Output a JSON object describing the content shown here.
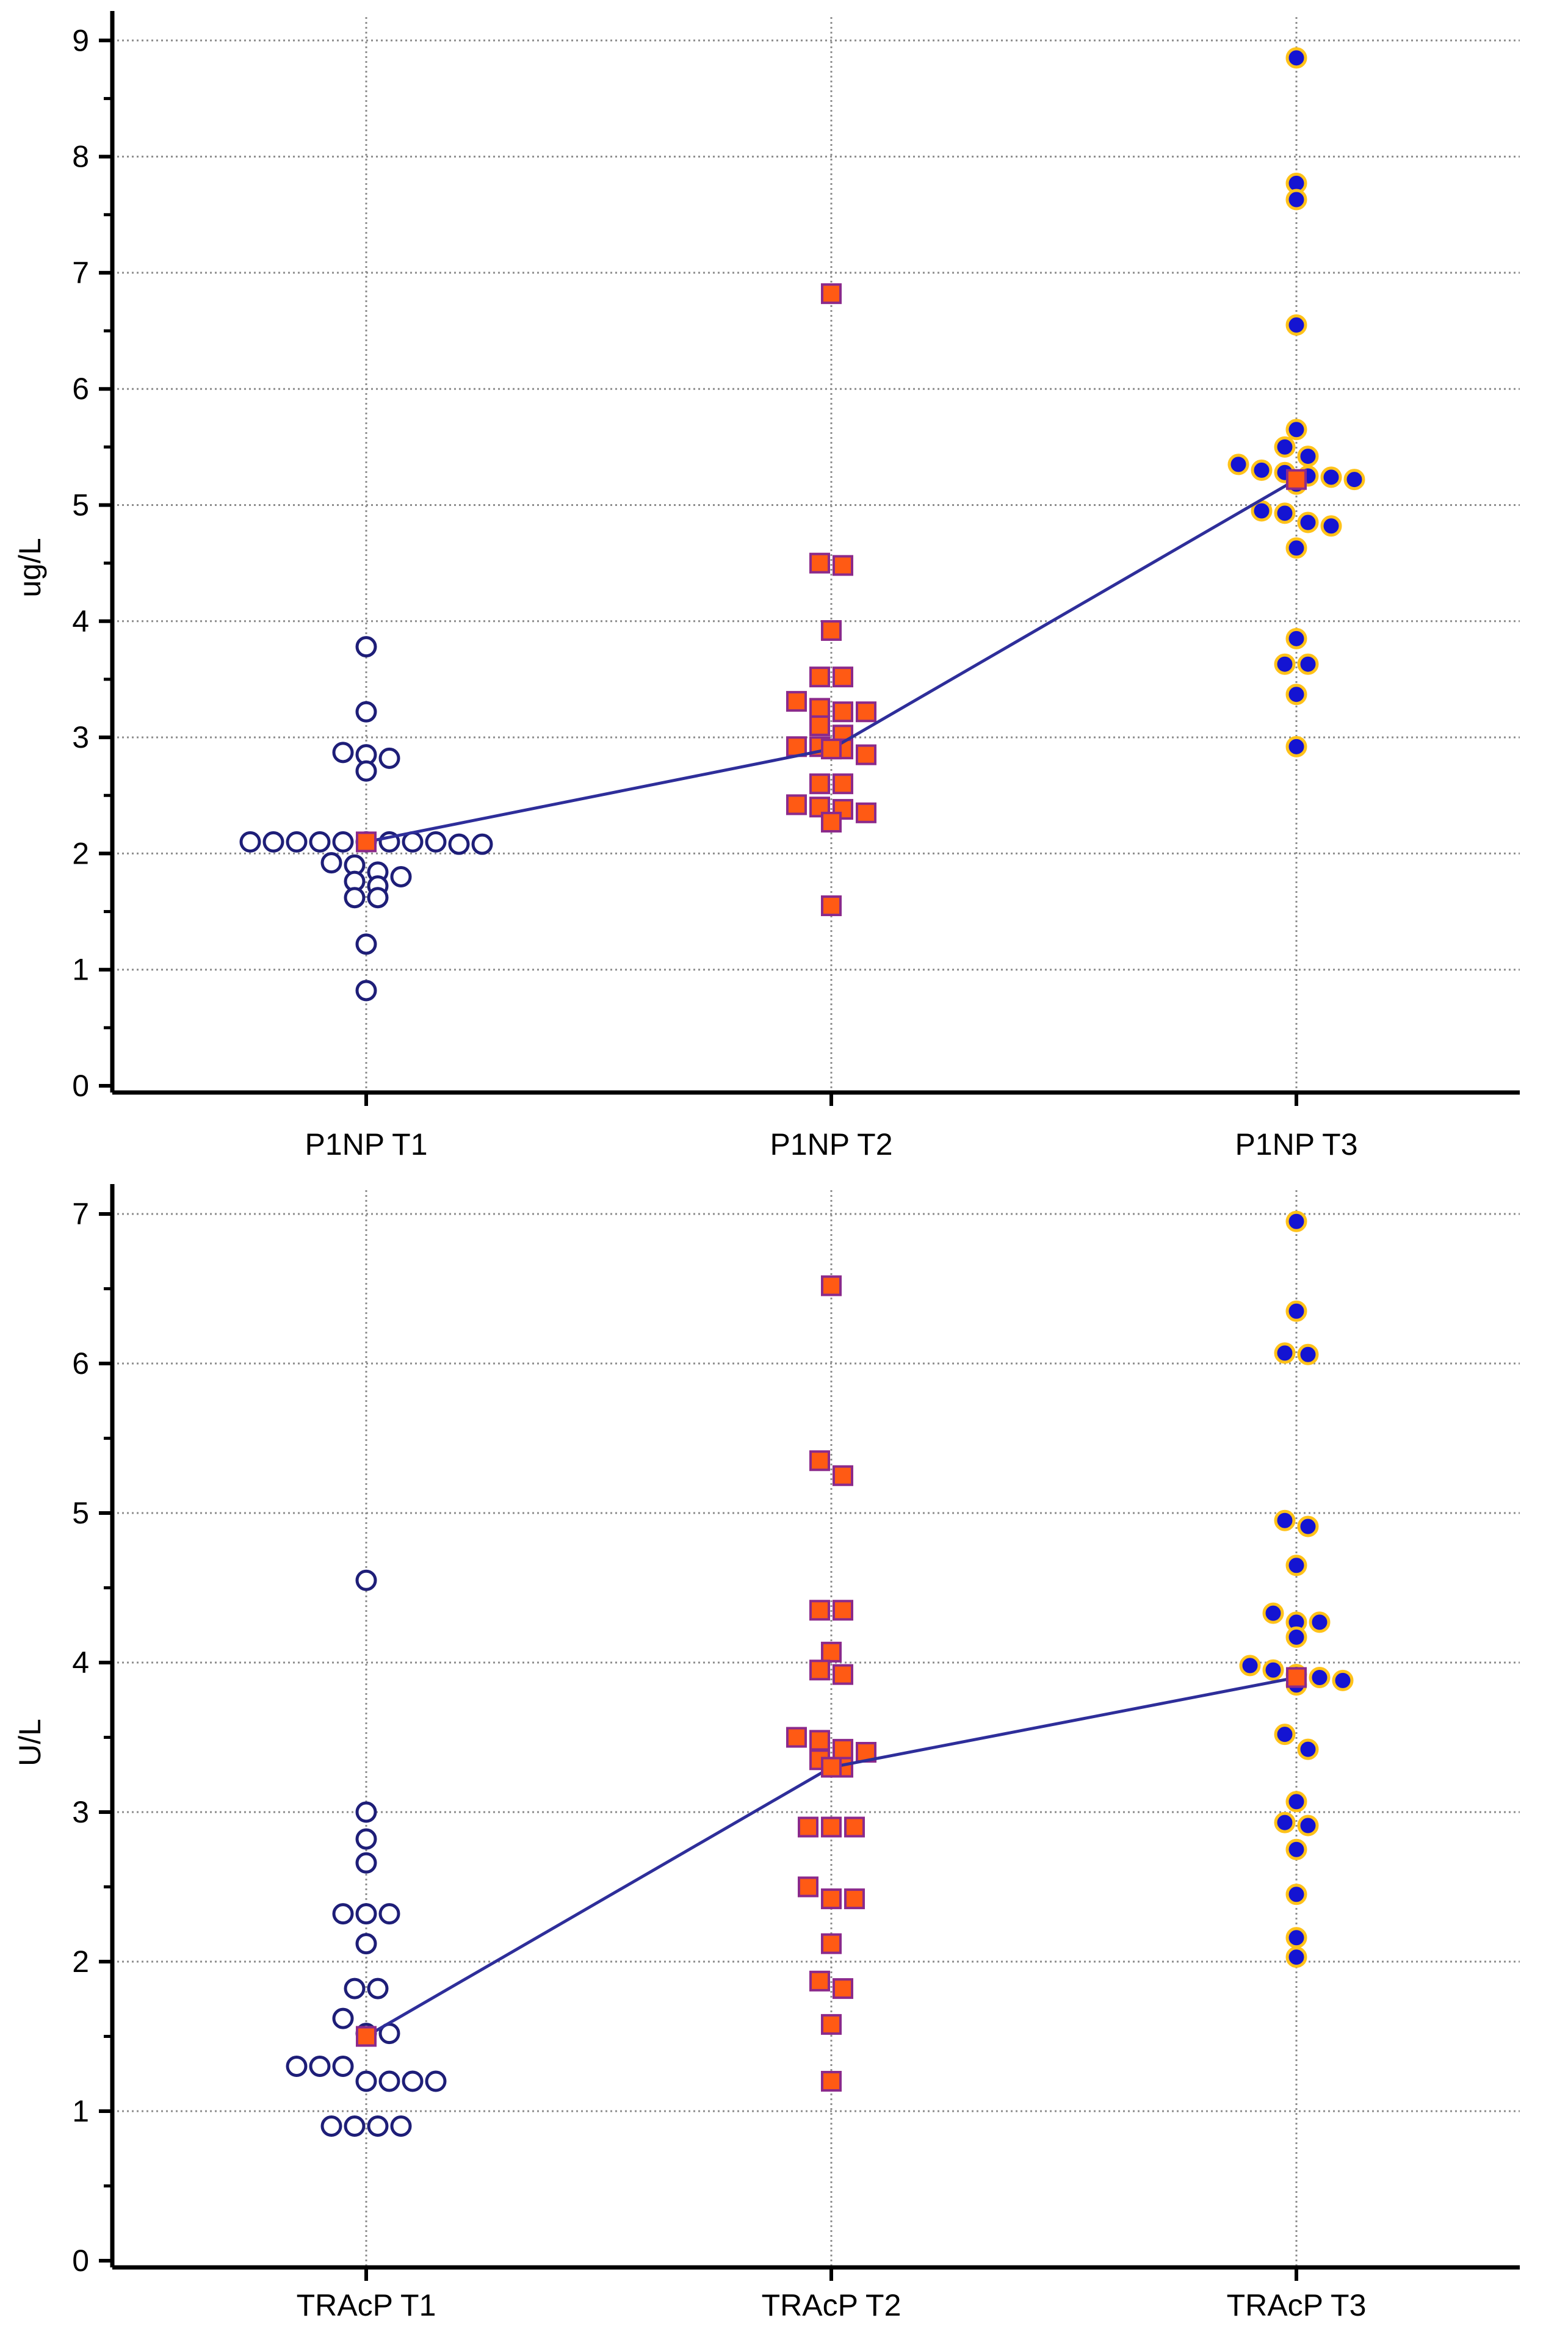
{
  "colors": {
    "axis": "#000000",
    "grid": "#8c8c8c",
    "line": "#2e2e9a",
    "open_circle": "#1e1e78",
    "square_fill": "#ff5a14",
    "square_edge": "#8b2a8b",
    "filled_circle": "#1414d2",
    "filled_circle_edge": "#ffc21a"
  },
  "chart_data": [
    {
      "type": "scatter",
      "name": "P1NP",
      "ylabel": "ug/L",
      "ylim": [
        0,
        9
      ],
      "yticks": [
        0,
        1,
        2,
        3,
        4,
        5,
        6,
        7,
        8,
        9
      ],
      "grid": true,
      "categories": [
        "P1NP T1",
        "P1NP T2",
        "P1NP T3"
      ],
      "marker_styles": [
        "open-circle",
        "square",
        "filled-circle"
      ],
      "means": [
        2.1,
        2.9,
        5.22
      ],
      "series": [
        {
          "name": "P1NP T1",
          "values": [
            3.78,
            3.22,
            2.87,
            2.85,
            2.82,
            2.71,
            2.1,
            2.1,
            2.1,
            2.1,
            2.1,
            2.1,
            2.1,
            2.1,
            2.1,
            2.08,
            2.08,
            1.92,
            1.9,
            1.84,
            1.8,
            1.76,
            1.72,
            1.62,
            1.62,
            1.22,
            0.82
          ]
        },
        {
          "name": "P1NP T2",
          "values": [
            6.82,
            4.5,
            4.48,
            3.92,
            3.52,
            3.52,
            3.31,
            3.25,
            3.22,
            3.22,
            3.1,
            3.02,
            2.92,
            2.92,
            2.9,
            2.85,
            2.6,
            2.6,
            2.42,
            2.4,
            2.38,
            2.35,
            2.27,
            1.55
          ]
        },
        {
          "name": "P1NP T3",
          "values": [
            8.85,
            7.77,
            7.63,
            6.55,
            5.65,
            5.5,
            5.42,
            5.35,
            5.3,
            5.28,
            5.25,
            5.24,
            5.22,
            5.18,
            4.95,
            4.93,
            4.85,
            4.82,
            4.63,
            3.85,
            3.63,
            3.63,
            3.37,
            2.92
          ]
        }
      ]
    },
    {
      "type": "scatter",
      "name": "TRAcP",
      "ylabel": "U/L",
      "ylim": [
        0,
        7
      ],
      "yticks": [
        0,
        1,
        2,
        3,
        4,
        5,
        6,
        7
      ],
      "grid": true,
      "categories": [
        "TRAcP T1",
        "TRAcP T2",
        "TRAcP T3"
      ],
      "marker_styles": [
        "open-circle",
        "square",
        "filled-circle"
      ],
      "means": [
        1.5,
        3.3,
        3.9
      ],
      "series": [
        {
          "name": "TRAcP T1",
          "values": [
            4.55,
            3.0,
            2.82,
            2.66,
            2.32,
            2.32,
            2.32,
            2.12,
            1.82,
            1.82,
            1.62,
            1.52,
            1.52,
            1.3,
            1.3,
            1.3,
            1.2,
            1.2,
            1.2,
            1.2,
            0.9,
            0.9,
            0.9,
            0.9
          ]
        },
        {
          "name": "TRAcP T2",
          "values": [
            6.52,
            5.35,
            5.25,
            4.35,
            4.35,
            4.07,
            3.95,
            3.92,
            3.5,
            3.48,
            3.42,
            3.4,
            3.35,
            3.3,
            2.9,
            2.9,
            2.9,
            2.5,
            2.42,
            2.42,
            2.12,
            1.87,
            1.82,
            1.58,
            1.2
          ]
        },
        {
          "name": "TRAcP T3",
          "values": [
            6.95,
            6.35,
            6.07,
            6.06,
            4.95,
            4.91,
            4.65,
            4.33,
            4.27,
            4.27,
            4.17,
            3.98,
            3.95,
            3.92,
            3.9,
            3.88,
            3.85,
            3.52,
            3.42,
            3.07,
            2.93,
            2.91,
            2.75,
            2.45,
            2.16,
            2.03
          ]
        }
      ]
    }
  ]
}
